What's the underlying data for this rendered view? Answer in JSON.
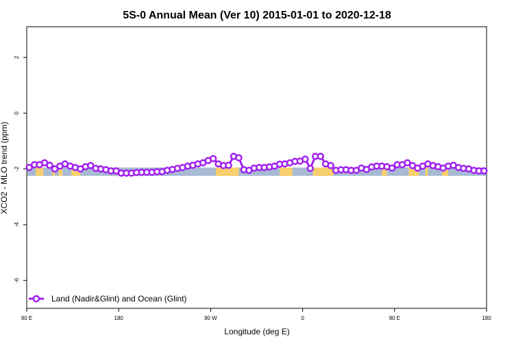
{
  "chart_data": {
    "type": "line",
    "title": "5S-0 Annual Mean (Ver 10)   2015-01-01 to 2020-12-18",
    "xlabel": "Longitude (deg E)",
    "ylabel": "XCO2 - MLO trend (ppm)",
    "xlim": [
      90,
      450
    ],
    "ylim": [
      -7,
      3.1
    ],
    "x_ticks": [
      {
        "value": 90,
        "label": "90 E"
      },
      {
        "value": 162,
        "label": "180"
      },
      {
        "value": 234,
        "label": "90 W"
      },
      {
        "value": 306,
        "label": "0"
      },
      {
        "value": 378,
        "label": "90 E"
      },
      {
        "value": 450,
        "label": "180"
      }
    ],
    "y_ticks": [
      {
        "value": 2,
        "label": "2"
      },
      {
        "value": 0,
        "label": "0"
      },
      {
        "value": -2,
        "label": "-2"
      },
      {
        "value": -4,
        "label": "-4"
      },
      {
        "value": -6,
        "label": "-6"
      }
    ],
    "band": {
      "y_top": -1.95,
      "y_bottom": -2.25,
      "ocean_color": "#a7b9d3",
      "land_color": "#f8cf6e"
    },
    "land_segments": [
      [
        97,
        103
      ],
      [
        110,
        112
      ],
      [
        115,
        118
      ],
      [
        125,
        132
      ],
      [
        238,
        256
      ],
      [
        288,
        298
      ],
      [
        314,
        330
      ],
      [
        368,
        372
      ],
      [
        389,
        397
      ],
      [
        402,
        404
      ],
      [
        415,
        420
      ]
    ],
    "series": [
      {
        "name": "Land (Nadir&Glint) and Ocean (Glint)",
        "color": "#a020f0",
        "x": [
          92,
          96,
          100,
          104,
          108,
          112,
          116,
          120,
          124,
          128,
          132,
          136,
          140,
          144,
          148,
          152,
          156,
          160,
          164,
          168,
          172,
          176,
          180,
          184,
          188,
          192,
          196,
          200,
          204,
          208,
          212,
          216,
          220,
          224,
          228,
          232,
          236,
          240,
          244,
          248,
          252,
          256,
          260,
          264,
          268,
          272,
          276,
          280,
          284,
          288,
          292,
          296,
          300,
          304,
          308,
          312,
          316,
          320,
          324,
          328,
          332,
          336,
          340,
          344,
          348,
          352,
          356,
          360,
          364,
          368,
          372,
          376,
          380,
          384,
          388,
          392,
          396,
          400,
          404,
          408,
          412,
          416,
          420,
          424,
          428,
          432,
          436,
          440,
          444,
          448
        ],
        "values": [
          -1.95,
          -1.85,
          -1.85,
          -1.78,
          -1.87,
          -2.0,
          -1.9,
          -1.82,
          -1.9,
          -1.95,
          -2.0,
          -1.92,
          -1.88,
          -1.98,
          -2.0,
          -2.03,
          -2.07,
          -2.07,
          -2.15,
          -2.15,
          -2.15,
          -2.13,
          -2.12,
          -2.12,
          -2.12,
          -2.1,
          -2.1,
          -2.05,
          -2.02,
          -1.98,
          -1.95,
          -1.9,
          -1.87,
          -1.82,
          -1.78,
          -1.7,
          -1.63,
          -1.82,
          -1.88,
          -1.87,
          -1.55,
          -1.6,
          -2.03,
          -2.05,
          -1.97,
          -1.95,
          -1.95,
          -1.93,
          -1.9,
          -1.83,
          -1.82,
          -1.78,
          -1.73,
          -1.72,
          -1.65,
          -1.98,
          -1.55,
          -1.55,
          -1.82,
          -1.88,
          -2.05,
          -2.03,
          -2.03,
          -2.05,
          -2.05,
          -1.97,
          -2.02,
          -1.93,
          -1.9,
          -1.9,
          -1.92,
          -1.97,
          -1.85,
          -1.85,
          -1.78,
          -1.88,
          -1.97,
          -1.9,
          -1.82,
          -1.88,
          -1.92,
          -1.97,
          -1.9,
          -1.87,
          -1.95,
          -1.98,
          -2.0,
          -2.05,
          -2.07,
          -2.07
        ]
      }
    ],
    "legend": {
      "position": "bottom-left",
      "label": "Land (Nadir&Glint) and Ocean (Glint)"
    }
  }
}
